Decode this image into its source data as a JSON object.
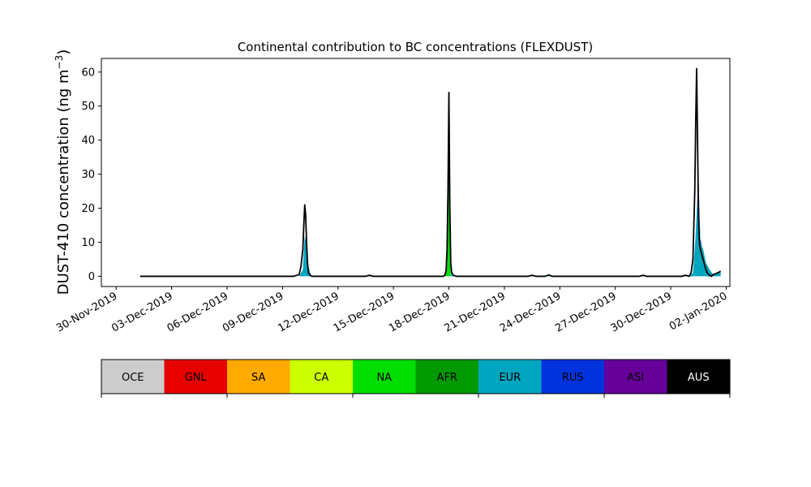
{
  "chart_data": {
    "type": "area",
    "title": "Continental contribution to BC concentrations (FLEXDUST)",
    "ylabel_main": "DUST-410 concentration (ng m",
    "ylabel_unit_sup": "−3",
    "ylabel_close": ")",
    "xlabel": "",
    "x_start": "2019-11-30",
    "x_range_days": [
      -0.8,
      33.2
    ],
    "ylim": [
      -3,
      64
    ],
    "yticks": [
      0,
      10,
      20,
      30,
      40,
      50,
      60
    ],
    "ytick_labels": [
      "0",
      "10",
      "20",
      "30",
      "40",
      "50",
      "60"
    ],
    "xticks_days": [
      0,
      3,
      6,
      9,
      12,
      15,
      18,
      21,
      24,
      27,
      30,
      33
    ],
    "xtick_labels": [
      "30-Nov-2019",
      "03-Dec-2019",
      "06-Dec-2019",
      "09-Dec-2019",
      "12-Dec-2019",
      "15-Dec-2019",
      "18-Dec-2019",
      "21-Dec-2019",
      "24-Dec-2019",
      "27-Dec-2019",
      "30-Dec-2019",
      "02-Jan-2020"
    ],
    "grid": false,
    "series": [
      {
        "name": "OCE",
        "color": "#cccccc",
        "x": [
          1.3,
          32.7
        ],
        "values": [
          0,
          0
        ]
      },
      {
        "name": "GNL",
        "color": "#e60000",
        "x": [
          1.3,
          30.3,
          30.5,
          30.7,
          32.7
        ],
        "values": [
          0,
          0,
          0.2,
          0,
          0
        ]
      },
      {
        "name": "SA",
        "color": "#ffaa00",
        "x": [
          1.3,
          32.7
        ],
        "values": [
          0,
          0
        ]
      },
      {
        "name": "CA",
        "color": "#ccff00",
        "x": [
          1.3,
          32.7
        ],
        "values": [
          0,
          0
        ]
      },
      {
        "name": "NA",
        "color": "#00dd00",
        "x": [
          1.3,
          17.8,
          17.9,
          17.95,
          18.0,
          18.05,
          18.1,
          32.7
        ],
        "values": [
          0,
          0,
          2,
          10,
          25,
          6,
          0,
          0
        ]
      },
      {
        "name": "AFR",
        "color": "#009900",
        "x": [
          1.3,
          17.8,
          17.9,
          17.95,
          18.0,
          18.05,
          18.1,
          32.7
        ],
        "values": [
          0,
          0,
          1,
          4,
          5,
          2,
          0,
          0
        ]
      },
      {
        "name": "EUR",
        "color": "#00a6bf",
        "x": [
          1.3,
          9.6,
          9.9,
          10.1,
          10.2,
          10.3,
          10.4,
          10.55,
          10.7,
          13.5,
          13.7,
          13.9,
          17.7,
          17.85,
          17.95,
          18.0,
          18.05,
          18.15,
          18.3,
          22.3,
          22.5,
          22.7,
          23.2,
          23.4,
          23.6,
          28.3,
          28.5,
          28.7,
          30.6,
          30.8,
          31.0,
          31.2,
          31.35,
          31.5,
          31.6,
          31.75,
          31.9,
          32.1,
          32.3,
          32.5,
          32.7
        ],
        "values": [
          0,
          0,
          0,
          2,
          12,
          8,
          3,
          0,
          0,
          0,
          0.3,
          0,
          0,
          0.5,
          1,
          3,
          1,
          0.5,
          0,
          0,
          0.3,
          0,
          0,
          0.4,
          0,
          0,
          0.3,
          0,
          0,
          0.3,
          0,
          1,
          12,
          28,
          10,
          8,
          4,
          2,
          0.5,
          0.8,
          1.2
        ]
      },
      {
        "name": "RUS",
        "color": "#0033dd",
        "x": [
          1.3,
          10.2,
          10.3,
          10.4,
          17.9,
          18.0,
          18.1,
          31.3,
          31.4,
          31.5,
          31.6,
          31.7,
          32.7
        ],
        "values": [
          0,
          0,
          1,
          0,
          0,
          1,
          0,
          0,
          1,
          2,
          1,
          0,
          0
        ]
      },
      {
        "name": "ASI",
        "color": "#660099",
        "x": [
          1.3,
          32.7
        ],
        "values": [
          0,
          0
        ]
      },
      {
        "name": "AUS",
        "color": "#000000",
        "x": [
          1.3,
          32.7
        ],
        "values": [
          0,
          0
        ]
      }
    ],
    "total_outline": {
      "x": [
        1.3,
        9.6,
        9.9,
        10.0,
        10.1,
        10.15,
        10.2,
        10.25,
        10.3,
        10.35,
        10.4,
        10.5,
        10.6,
        13.5,
        13.7,
        13.9,
        17.7,
        17.8,
        17.85,
        17.9,
        17.95,
        18.0,
        18.05,
        18.1,
        18.15,
        18.25,
        18.4,
        22.3,
        22.5,
        22.7,
        23.2,
        23.4,
        23.6,
        28.3,
        28.5,
        28.7,
        30.6,
        30.8,
        31.0,
        31.1,
        31.2,
        31.3,
        31.35,
        31.4,
        31.45,
        31.5,
        31.55,
        31.6,
        31.7,
        31.8,
        31.9,
        32.0,
        32.1,
        32.2,
        32.3,
        32.45,
        32.6,
        32.7
      ],
      "values": [
        0,
        0,
        0.5,
        3,
        8,
        15,
        21,
        18,
        10,
        4,
        1,
        0.3,
        0,
        0,
        0.3,
        0,
        0,
        0.5,
        2,
        8,
        25,
        54,
        20,
        4,
        1,
        0.3,
        0,
        0,
        0.3,
        0,
        0,
        0.4,
        0,
        0,
        0.3,
        0,
        0,
        0.3,
        0,
        1,
        5,
        25,
        45,
        61,
        40,
        18,
        10,
        8,
        6,
        4,
        2,
        0.8,
        0.3,
        0,
        0.5,
        0.8,
        1.2,
        1.5
      ]
    },
    "legend": {
      "position": "bottom-colorbar",
      "entries": [
        {
          "label": "OCE",
          "color": "#cccccc"
        },
        {
          "label": "GNL",
          "color": "#e60000"
        },
        {
          "label": "SA",
          "color": "#ffaa00"
        },
        {
          "label": "CA",
          "color": "#ccff00"
        },
        {
          "label": "NA",
          "color": "#00dd00"
        },
        {
          "label": "AFR",
          "color": "#009900"
        },
        {
          "label": "EUR",
          "color": "#00a6bf"
        },
        {
          "label": "RUS",
          "color": "#0033dd"
        },
        {
          "label": "ASI",
          "color": "#660099"
        },
        {
          "label": "AUS",
          "color": "#000000",
          "text_color": "#ffffff"
        }
      ]
    }
  }
}
